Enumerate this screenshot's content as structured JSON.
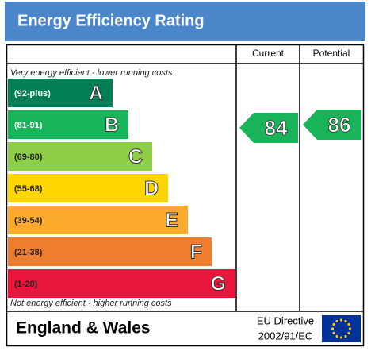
{
  "header": {
    "title": "Energy Efficiency Rating"
  },
  "columns": {
    "current": "Current",
    "potential": "Potential"
  },
  "top_note": "Very energy efficient - lower running costs",
  "bottom_note": "Not energy efficient - higher running costs",
  "bands": [
    {
      "range": "(92-plus)",
      "letter": "A",
      "color": "#008054"
    },
    {
      "range": "(81-91)",
      "letter": "B",
      "color": "#19b459"
    },
    {
      "range": "(69-80)",
      "letter": "C",
      "color": "#8dce46"
    },
    {
      "range": "(55-68)",
      "letter": "D",
      "color": "#ffd500"
    },
    {
      "range": "(39-54)",
      "letter": "E",
      "color": "#fcaa2c"
    },
    {
      "range": "(21-38)",
      "letter": "F",
      "color": "#ef7d2d"
    },
    {
      "range": "(1-20)",
      "letter": "G",
      "color": "#e9153b"
    }
  ],
  "current": {
    "value": 84,
    "color": "#19b459"
  },
  "potential": {
    "value": 86,
    "color": "#19b459"
  },
  "footer": {
    "region": "England & Wales",
    "directive_line1": "EU Directive",
    "directive_line2": "2002/91/EC"
  }
}
